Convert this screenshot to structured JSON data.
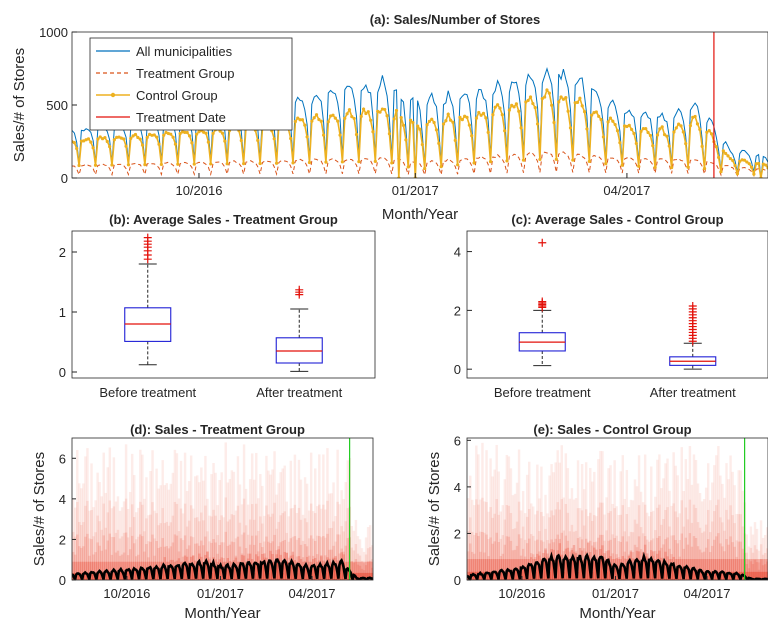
{
  "colors": {
    "all_municipalities": "#0072BD",
    "treatment_group": "#D95319",
    "control_group": "#EDB120",
    "treatment_date": "#E3120B",
    "box": "#1f1fd6",
    "median": "#E3120B",
    "outlier": "#E3120B",
    "sales_line": "#000000",
    "treatment_marker_green": "#22CC22",
    "heat": "#E8402A"
  },
  "chart_data": [
    {
      "id": "a",
      "type": "line",
      "title": "(a): Sales/Number of Stores",
      "xlabel": "Month/Year",
      "ylabel": "Sales/# of Stores",
      "x_range": [
        "2016-08-08",
        "2017-05-31"
      ],
      "ylim": [
        0,
        1000
      ],
      "yticks": [
        0,
        500,
        1000
      ],
      "xticks": [
        {
          "date": "2016-10-01",
          "label": "10/2016"
        },
        {
          "date": "2017-01-01",
          "label": "01/2017"
        },
        {
          "date": "2017-04-01",
          "label": "04/2017"
        }
      ],
      "legend_position": "top-left",
      "series": [
        {
          "name": "All municipalities",
          "style": "solid",
          "weekly": [
            {
              "week_start": "2016-08-08",
              "peak": 330,
              "low": 200
            },
            {
              "week_start": "2016-08-29",
              "peak": 370,
              "low": 220
            },
            {
              "week_start": "2016-09-26",
              "peak": 430,
              "low": 240
            },
            {
              "week_start": "2016-10-31",
              "peak": 500,
              "low": 250
            },
            {
              "week_start": "2016-11-28",
              "peak": 620,
              "low": 280
            },
            {
              "week_start": "2016-12-19",
              "peak": 670,
              "low": 300
            },
            {
              "week_start": "2017-01-02",
              "peak": 540,
              "low": 150
            },
            {
              "week_start": "2017-01-30",
              "peak": 600,
              "low": 280
            },
            {
              "week_start": "2017-02-27",
              "peak": 760,
              "low": 340
            },
            {
              "week_start": "2017-03-13",
              "peak": 690,
              "low": 300
            },
            {
              "week_start": "2017-03-27",
              "peak": 500,
              "low": 220
            },
            {
              "week_start": "2017-04-17",
              "peak": 440,
              "low": 180
            },
            {
              "week_start": "2017-05-01",
              "peak": 520,
              "low": 180
            },
            {
              "week_start": "2017-05-15",
              "peak": 200,
              "low": 80
            },
            {
              "week_start": "2017-05-29",
              "peak": 160,
              "low": 80
            }
          ],
          "dips_to_zero": [
            "2016-12-25",
            "2017-01-01",
            "2017-05-28"
          ]
        },
        {
          "name": "Treatment Group",
          "style": "dashed",
          "weekly": [
            {
              "week_start": "2016-08-08",
              "peak": 90,
              "low": 45
            },
            {
              "week_start": "2016-10-31",
              "peak": 120,
              "low": 55
            },
            {
              "week_start": "2016-12-19",
              "peak": 140,
              "low": 60
            },
            {
              "week_start": "2017-01-02",
              "peak": 110,
              "low": 40
            },
            {
              "week_start": "2017-02-27",
              "peak": 180,
              "low": 80
            },
            {
              "week_start": "2017-03-27",
              "peak": 140,
              "low": 70
            },
            {
              "week_start": "2017-05-01",
              "peak": 130,
              "low": 60
            },
            {
              "week_start": "2017-05-15",
              "peak": 80,
              "low": 35
            },
            {
              "week_start": "2017-05-29",
              "peak": 60,
              "low": 30
            }
          ]
        },
        {
          "name": "Control Group",
          "style": "solid-with-markers",
          "weekly": [
            {
              "week_start": "2016-08-08",
              "peak": 260,
              "low": 170
            },
            {
              "week_start": "2016-08-29",
              "peak": 290,
              "low": 180
            },
            {
              "week_start": "2016-09-26",
              "peak": 320,
              "low": 190
            },
            {
              "week_start": "2016-10-31",
              "peak": 380,
              "low": 200
            },
            {
              "week_start": "2016-11-28",
              "peak": 440,
              "low": 220
            },
            {
              "week_start": "2016-12-19",
              "peak": 480,
              "low": 230
            },
            {
              "week_start": "2017-01-02",
              "peak": 400,
              "low": 120
            },
            {
              "week_start": "2017-01-30",
              "peak": 450,
              "low": 220
            },
            {
              "week_start": "2017-02-27",
              "peak": 590,
              "low": 260
            },
            {
              "week_start": "2017-03-13",
              "peak": 530,
              "low": 240
            },
            {
              "week_start": "2017-03-27",
              "peak": 380,
              "low": 180
            },
            {
              "week_start": "2017-04-17",
              "peak": 330,
              "low": 140
            },
            {
              "week_start": "2017-05-01",
              "peak": 420,
              "low": 150
            },
            {
              "week_start": "2017-05-15",
              "peak": 140,
              "low": 60
            },
            {
              "week_start": "2017-05-29",
              "peak": 100,
              "low": 50
            }
          ],
          "dips_to_zero": [
            "2016-12-25",
            "2017-01-01",
            "2017-05-28"
          ]
        },
        {
          "name": "Treatment Date",
          "style": "vertical-line",
          "x": "2017-05-08"
        }
      ]
    },
    {
      "id": "b",
      "type": "box",
      "title": "(b): Average Sales - Treatment Group",
      "categories": [
        "Before treatment",
        "After treatment"
      ],
      "ylim": [
        -0.1,
        2.35
      ],
      "yticks": [
        0,
        1,
        2
      ],
      "boxes": [
        {
          "whisker_low": 0.12,
          "q1": 0.51,
          "median": 0.8,
          "q3": 1.07,
          "whisker_high": 1.8,
          "outliers": [
            1.88,
            1.95,
            2.02,
            2.08,
            2.13,
            2.18,
            2.24
          ]
        },
        {
          "whisker_low": 0.01,
          "q1": 0.15,
          "median": 0.35,
          "q3": 0.57,
          "whisker_high": 1.05,
          "outliers": [
            1.29,
            1.33,
            1.37
          ]
        }
      ]
    },
    {
      "id": "c",
      "type": "box",
      "title": "(c): Average Sales - Control Group",
      "categories": [
        "Before treatment",
        "After treatment"
      ],
      "ylim": [
        -0.3,
        4.7
      ],
      "yticks": [
        0,
        2,
        4
      ],
      "boxes": [
        {
          "whisker_low": 0.12,
          "q1": 0.62,
          "median": 0.92,
          "q3": 1.24,
          "whisker_high": 2.0,
          "outliers": [
            2.1,
            2.15,
            2.2,
            2.25,
            2.3,
            4.3
          ]
        },
        {
          "whisker_low": 0.0,
          "q1": 0.13,
          "median": 0.27,
          "q3": 0.42,
          "whisker_high": 0.88,
          "outliers": [
            0.95,
            1.05,
            1.15,
            1.25,
            1.35,
            1.45,
            1.55,
            1.65,
            1.75,
            1.85,
            1.95,
            2.05,
            2.15
          ]
        }
      ]
    },
    {
      "id": "d",
      "type": "heatmap",
      "title": "(d): Sales - Treatment Group",
      "xlabel": "Month/Year",
      "ylabel": "Sales/# of Stores",
      "x_range": [
        "2016-08-08",
        "2017-05-31"
      ],
      "ylim": [
        0,
        7
      ],
      "yticks": [
        0,
        2,
        4,
        6
      ],
      "xticks": [
        {
          "date": "2016-10-01",
          "label": "10/2016"
        },
        {
          "date": "2017-01-01",
          "label": "01/2017"
        },
        {
          "date": "2017-04-01",
          "label": "04/2017"
        }
      ],
      "mean_line_weekly": [
        {
          "week_start": "2016-08-08",
          "peak": 0.3
        },
        {
          "week_start": "2016-09-26",
          "peak": 0.5
        },
        {
          "week_start": "2016-11-28",
          "peak": 0.8
        },
        {
          "week_start": "2016-12-19",
          "peak": 0.9
        },
        {
          "week_start": "2017-01-02",
          "peak": 0.7
        },
        {
          "week_start": "2017-02-27",
          "peak": 1.0
        },
        {
          "week_start": "2017-03-27",
          "peak": 0.7
        },
        {
          "week_start": "2017-05-01",
          "peak": 0.9
        },
        {
          "week_start": "2017-05-15",
          "peak": 0.1
        }
      ],
      "treatment_date": "2017-05-08"
    },
    {
      "id": "e",
      "type": "heatmap",
      "title": "(e): Sales - Control Group",
      "xlabel": "Month/Year",
      "ylabel": "Sales/# of Stores",
      "x_range": [
        "2016-08-08",
        "2017-05-31"
      ],
      "ylim": [
        0,
        6.1
      ],
      "yticks": [
        0,
        2,
        4,
        6
      ],
      "xticks": [
        {
          "date": "2016-10-01",
          "label": "10/2016"
        },
        {
          "date": "2017-01-01",
          "label": "01/2017"
        },
        {
          "date": "2017-04-01",
          "label": "04/2017"
        }
      ],
      "mean_line_weekly": [
        {
          "week_start": "2016-08-08",
          "peak": 0.2
        },
        {
          "week_start": "2016-09-26",
          "peak": 0.5
        },
        {
          "week_start": "2016-10-31",
          "peak": 1.0
        },
        {
          "week_start": "2016-12-19",
          "peak": 1.0
        },
        {
          "week_start": "2017-01-02",
          "peak": 0.6
        },
        {
          "week_start": "2017-01-30",
          "peak": 1.0
        },
        {
          "week_start": "2017-03-27",
          "peak": 0.4
        },
        {
          "week_start": "2017-05-01",
          "peak": 0.3
        },
        {
          "week_start": "2017-05-15",
          "peak": 0.05
        }
      ],
      "treatment_date": "2017-05-08"
    }
  ]
}
